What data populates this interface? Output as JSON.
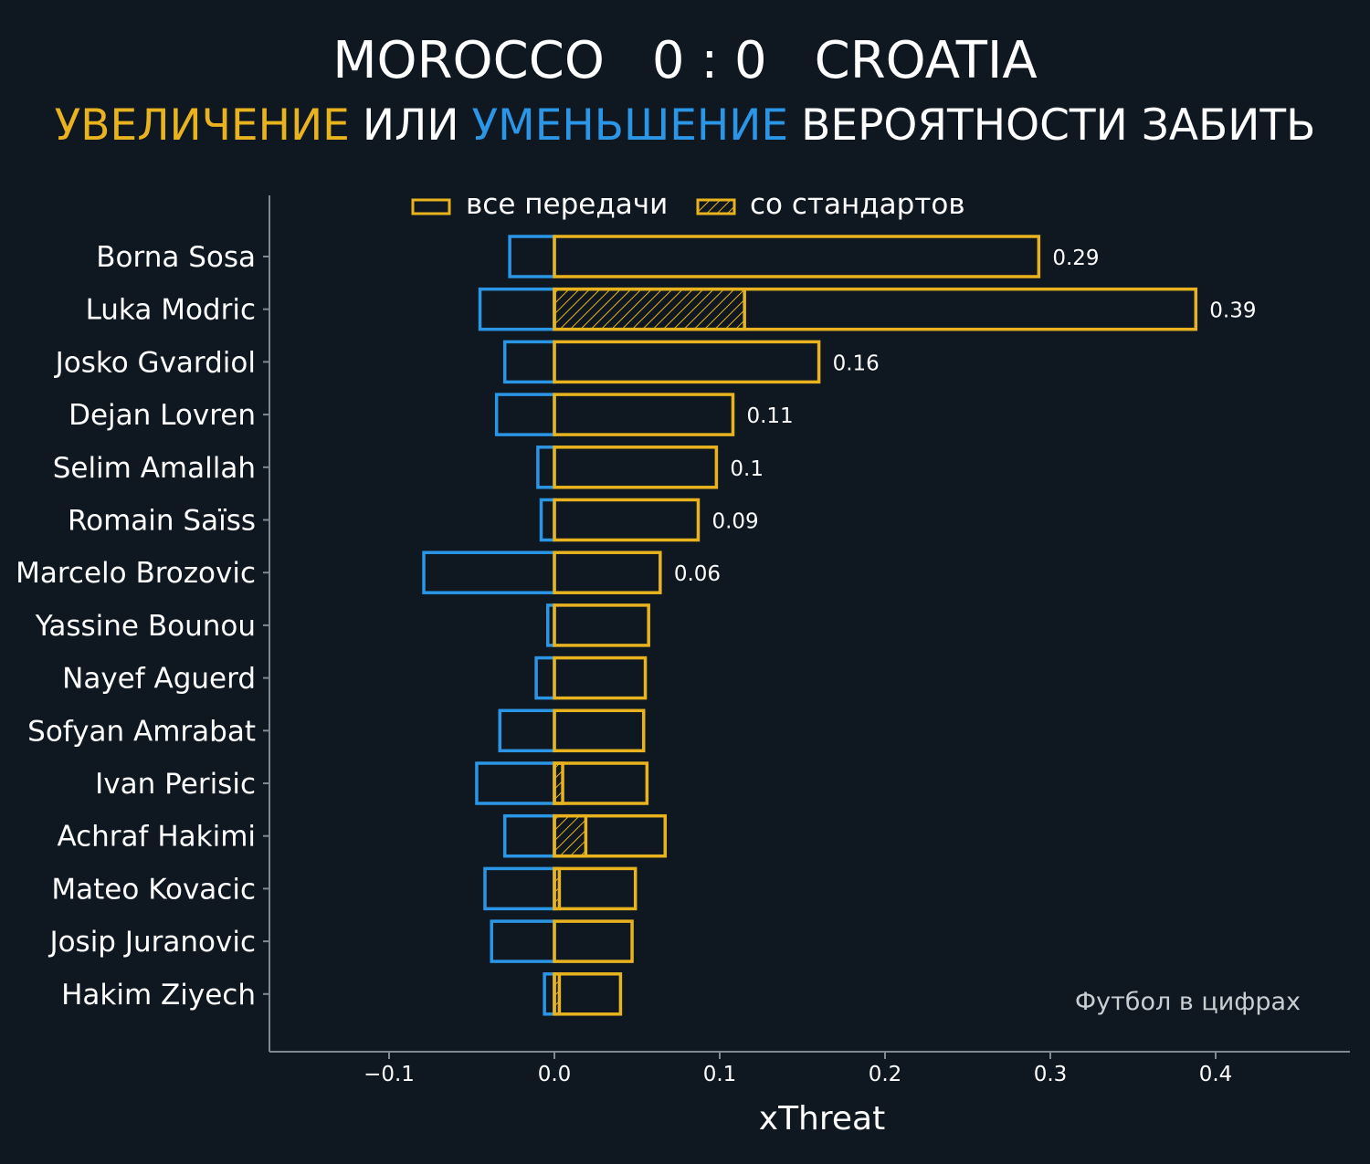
{
  "header": {
    "team_home": "MOROCCO",
    "score": "0 : 0",
    "team_away": "CROATIA",
    "subtitle_increase": "УВЕЛИЧЕНИЕ",
    "subtitle_or": "ИЛИ",
    "subtitle_decrease": "УМЕНЬШЕНИЕ",
    "subtitle_rest": "ВЕРОЯТНОСТИ ЗАБИТЬ"
  },
  "watermark": "Футбол в цифрах",
  "colors": {
    "background": "#0f1821",
    "increase": "#e8b31f",
    "decrease": "#2b95e6",
    "text": "#ffffff",
    "axis": "#7d8a94",
    "watermark": "#c9ced3"
  },
  "chart_data": {
    "type": "bar",
    "orientation": "horizontal",
    "xlabel": "xThreat",
    "xlim": [
      -0.17,
      0.48
    ],
    "xticks": [
      -0.1,
      0.0,
      0.1,
      0.2,
      0.3,
      0.4
    ],
    "xtick_labels": [
      "−0.1",
      "0.0",
      "0.1",
      "0.2",
      "0.3",
      "0.4"
    ],
    "legend": {
      "placement": "top-center",
      "entries": [
        {
          "label": "все передачи",
          "style": "outline"
        },
        {
          "label": "со стандартов",
          "style": "hatched"
        }
      ]
    },
    "categories": [
      "Borna Sosa",
      "Luka Modric",
      "Josko Gvardiol",
      "Dejan Lovren",
      "Selim Amallah",
      "Romain Saïss",
      "Marcelo Brozovic",
      "Yassine Bounou",
      "Nayef Aguerd",
      "Sofyan Amrabat",
      "Ivan Perisic",
      "Achraf Hakimi",
      "Mateo Kovacic",
      "Josip Juranovic",
      "Hakim Ziyech"
    ],
    "series": [
      {
        "name": "увеличение (все передачи)",
        "values": [
          0.293,
          0.388,
          0.16,
          0.108,
          0.098,
          0.087,
          0.064,
          0.057,
          0.055,
          0.054,
          0.056,
          0.067,
          0.049,
          0.047,
          0.04
        ]
      },
      {
        "name": "уменьшение",
        "values": [
          -0.027,
          -0.045,
          -0.03,
          -0.035,
          -0.01,
          -0.008,
          -0.079,
          -0.004,
          -0.011,
          -0.033,
          -0.047,
          -0.03,
          -0.042,
          -0.038,
          -0.006
        ]
      },
      {
        "name": "со стандартов",
        "values": [
          0,
          0.115,
          0,
          0,
          0,
          0,
          0,
          0,
          0,
          0,
          0.005,
          0.019,
          0.003,
          0,
          0.003
        ]
      }
    ],
    "value_labels": [
      "0.29",
      "0.39",
      "0.16",
      "0.11",
      "0.1",
      "0.09",
      "0.06",
      "",
      "",
      "",
      "",
      "",
      "",
      "",
      ""
    ]
  }
}
